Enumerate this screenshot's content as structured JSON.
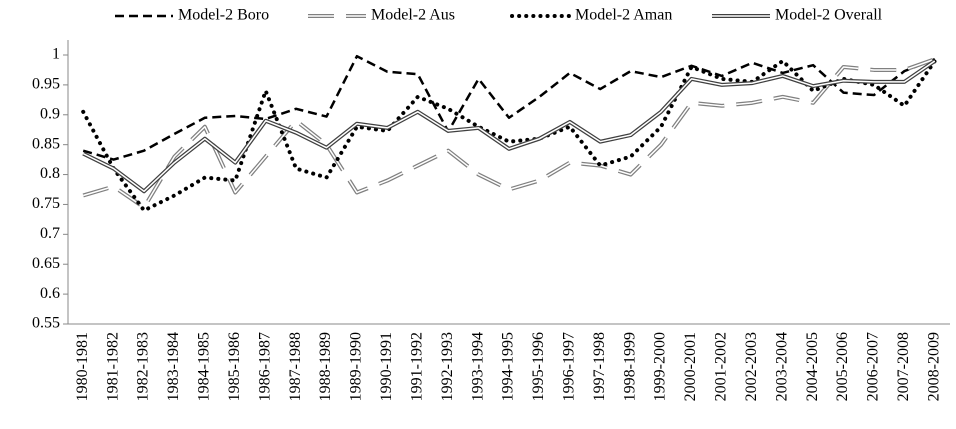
{
  "chart_data": {
    "type": "line",
    "categories": [
      "1980-1981",
      "1981-1982",
      "1982-1983",
      "1983-1984",
      "1984-1985",
      "1985-1986",
      "1986-1987",
      "1987-1988",
      "1988-1989",
      "1989-1990",
      "1990-1991",
      "1991-1992",
      "1992-1993",
      "1993-1994",
      "1994-1995",
      "1995-1996",
      "1996-1997",
      "1997-1998",
      "1998-1999",
      "1999-2000",
      "2000-2001",
      "2001-2002",
      "2002-2003",
      "2003-2004",
      "2004-2005",
      "2005-2006",
      "2006-2007",
      "2007-2008",
      "2008-2009"
    ],
    "series": [
      {
        "name": "Model-2 Boro",
        "color": "#000000",
        "style": "dashed",
        "values": [
          0.84,
          0.825,
          0.84,
          0.868,
          0.895,
          0.898,
          0.893,
          0.91,
          0.897,
          0.998,
          0.972,
          0.968,
          0.872,
          0.96,
          0.895,
          0.93,
          0.97,
          0.943,
          0.973,
          0.963,
          0.982,
          0.965,
          0.987,
          0.97,
          0.983,
          0.937,
          0.933,
          0.973,
          0.993
        ]
      },
      {
        "name": "Model-2 Aus",
        "color": "#808080",
        "style": "double-long-dash",
        "values": [
          0.765,
          0.78,
          0.745,
          0.83,
          0.88,
          0.77,
          0.83,
          0.89,
          0.85,
          0.77,
          0.79,
          0.815,
          0.84,
          0.8,
          0.775,
          0.79,
          0.82,
          0.815,
          0.8,
          0.85,
          0.92,
          0.915,
          0.92,
          0.93,
          0.92,
          0.98,
          0.975,
          0.975,
          0.993
        ]
      },
      {
        "name": "Model-2 Aman",
        "color": "#000000",
        "style": "dotted",
        "values": [
          0.905,
          0.81,
          0.74,
          0.765,
          0.795,
          0.79,
          0.94,
          0.81,
          0.795,
          0.88,
          0.873,
          0.93,
          0.91,
          0.88,
          0.855,
          0.86,
          0.88,
          0.815,
          0.83,
          0.88,
          0.98,
          0.96,
          0.955,
          0.99,
          0.94,
          0.96,
          0.95,
          0.915,
          0.99
        ]
      },
      {
        "name": "Model-2 Overall",
        "color": "#404040",
        "style": "double",
        "values": [
          0.835,
          0.81,
          0.772,
          0.82,
          0.86,
          0.82,
          0.89,
          0.87,
          0.845,
          0.885,
          0.878,
          0.905,
          0.873,
          0.878,
          0.843,
          0.86,
          0.888,
          0.855,
          0.866,
          0.905,
          0.96,
          0.95,
          0.953,
          0.965,
          0.948,
          0.957,
          0.955,
          0.955,
          0.99
        ]
      }
    ],
    "ylim": [
      0.55,
      1
    ],
    "yticks": [
      0.55,
      0.6,
      0.65,
      0.7,
      0.75,
      0.8,
      0.85,
      0.9,
      0.95,
      1
    ],
    "grid": false,
    "legend": "top"
  }
}
